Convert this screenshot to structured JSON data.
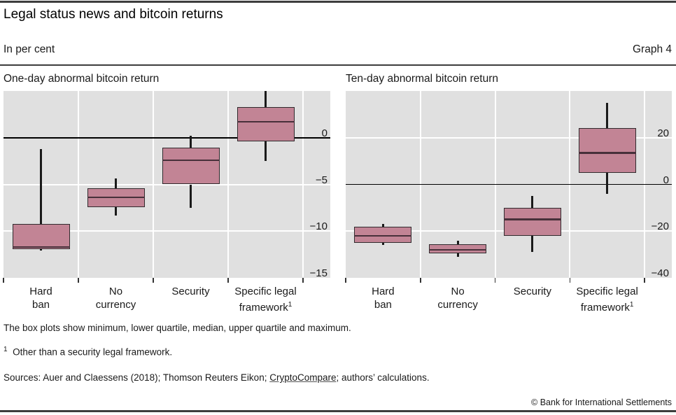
{
  "header": {
    "title": "Legal status news and bitcoin returns",
    "subtitle": "In per cent",
    "graph_label": "Graph 4"
  },
  "chart_data": [
    {
      "type": "boxplot",
      "title": "One-day abnormal bitcoin return",
      "axis": {
        "min": -15,
        "max": 5,
        "ticks": [
          0,
          -5,
          -10,
          -15
        ]
      },
      "grid": true,
      "categories": [
        {
          "name": "Hard ban",
          "label_lines": [
            "Hard",
            "ban"
          ],
          "footnote_sup": ""
        },
        {
          "name": "No currency",
          "label_lines": [
            "No",
            "currency"
          ],
          "footnote_sup": ""
        },
        {
          "name": "Security",
          "label_lines": [
            "Security"
          ],
          "footnote_sup": ""
        },
        {
          "name": "Specific legal framework",
          "label_lines": [
            "Specific legal",
            "framework"
          ],
          "footnote_sup": "1"
        }
      ],
      "boxes": [
        {
          "category": "Hard ban",
          "min": -12.1,
          "q1": -11.9,
          "median": -11.7,
          "q3": -9.2,
          "max": -1.2
        },
        {
          "category": "No currency",
          "min": -8.3,
          "q1": -7.4,
          "median": -6.4,
          "q3": -5.4,
          "max": -4.4
        },
        {
          "category": "Security",
          "min": -7.5,
          "q1": -5.0,
          "median": -2.4,
          "q3": -1.1,
          "max": 0.2
        },
        {
          "category": "Specific legal framework",
          "min": -2.5,
          "q1": -0.4,
          "median": 1.7,
          "q3": 3.3,
          "max": 5.0
        }
      ]
    },
    {
      "type": "boxplot",
      "title": "Ten-day abnormal bitcoin return",
      "axis": {
        "min": -40,
        "max": 40,
        "ticks": [
          20,
          0,
          -20,
          -40
        ]
      },
      "grid": true,
      "categories": [
        {
          "name": "Hard ban",
          "label_lines": [
            "Hard",
            "ban"
          ],
          "footnote_sup": ""
        },
        {
          "name": "No currency",
          "label_lines": [
            "No",
            "currency"
          ],
          "footnote_sup": ""
        },
        {
          "name": "Security",
          "label_lines": [
            "Security"
          ],
          "footnote_sup": ""
        },
        {
          "name": "Specific legal framework",
          "label_lines": [
            "Specific legal",
            "framework"
          ],
          "footnote_sup": "1"
        }
      ],
      "boxes": [
        {
          "category": "Hard ban",
          "min": -26,
          "q1": -25,
          "median": -22,
          "q3": -18,
          "max": -17
        },
        {
          "category": "No currency",
          "min": -31,
          "q1": -29.5,
          "median": -28,
          "q3": -25.5,
          "max": -24
        },
        {
          "category": "Security",
          "min": -29,
          "q1": -22,
          "median": -15,
          "q3": -10,
          "max": -5
        },
        {
          "category": "Specific legal framework",
          "min": -4,
          "q1": 5,
          "median": 13.5,
          "q3": 24,
          "max": 35
        }
      ]
    }
  ],
  "footer": {
    "note": "The box plots show minimum, lower quartile, median, upper quartile and maximum.",
    "footnote_sup": "1",
    "footnote_text": "  Other than a security legal framework.",
    "sources_prefix": "Sources: Auer and Claessens (2018); Thomson Reuters Eikon; ",
    "sources_link": "CryptoCompare",
    "sources_suffix": "; authors’ calculations.",
    "copyright": "© Bank for International Settlements"
  },
  "colors": {
    "box_fill": "#c28495",
    "box_border": "#302a2d",
    "median_line": "#47303a",
    "whisker": "#1a1a1a",
    "panel_bg": "#e0e0e0",
    "gridline": "#ffffff",
    "zero_line": "#000000",
    "axis_tick": "#333333",
    "rule": "#3d3d3d",
    "text": "#1a1a1a"
  }
}
